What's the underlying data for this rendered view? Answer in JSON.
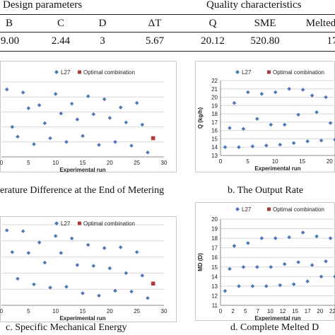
{
  "table": {
    "design_header": "Design parameters",
    "quality_header": "Quality characteristics",
    "columns": [
      "B",
      "C",
      "D",
      "ΔT",
      "Q",
      "SME",
      "Melted"
    ],
    "row": [
      "9.00",
      "2.44",
      "3",
      "5.67",
      "20.12",
      "520.80",
      "17"
    ]
  },
  "captions": {
    "a": "erature Difference at the End of Metering",
    "b": "b.  The Output Rate",
    "c": "c.  Specific Mechanical Energy",
    "d": "d.   Complete Melted D"
  },
  "colors": {
    "l27": "#4a78b8",
    "optimal": "#b03a3a"
  },
  "chart_data": [
    {
      "type": "scatter",
      "id": "a",
      "xlabel": "Experimental run",
      "xlim": [
        0,
        30
      ],
      "ylim": [
        0,
        10
      ],
      "x_ticks": [
        "0",
        "5",
        "10",
        "15",
        "20",
        "25",
        "30"
      ],
      "legend": [
        "L27",
        "Optimal combination"
      ],
      "series": [
        {
          "name": "L27",
          "x": [
            1,
            2,
            3,
            4,
            5,
            6,
            7,
            8,
            9,
            10,
            11,
            12,
            13,
            14,
            15,
            16,
            17,
            18,
            19,
            20,
            21,
            22,
            23,
            24,
            25,
            26,
            27
          ],
          "y": [
            9,
            4,
            2.7,
            8.6,
            6.5,
            1.7,
            6.9,
            4.5,
            2.5,
            8.4,
            5.8,
            2.0,
            7.1,
            5.0,
            2.8,
            8.1,
            5.7,
            1.6,
            7.7,
            5.2,
            2.0,
            6.6,
            4.6,
            1.5,
            7.2,
            4.3,
            0.6
          ]
        },
        {
          "name": "Optimal combination",
          "x": [
            28
          ],
          "y": [
            2.5
          ]
        }
      ]
    },
    {
      "type": "scatter",
      "id": "b",
      "xlabel": "Experimental run",
      "ylabel": "Q (kg/h)",
      "xlim": [
        0,
        25
      ],
      "ylim": [
        13,
        22
      ],
      "x_ticks": [
        "0",
        "5",
        "10",
        "15",
        "20"
      ],
      "y_ticks": [
        "13",
        "14",
        "15",
        "16",
        "17",
        "18",
        "19",
        "20",
        "21",
        "22"
      ],
      "legend": [
        "L27",
        "Optimal combination"
      ],
      "series": [
        {
          "name": "L27",
          "x": [
            1,
            2,
            3,
            4,
            5,
            6,
            7,
            8,
            9,
            10,
            11,
            12,
            13,
            14,
            15,
            16,
            17,
            18,
            19,
            20,
            21,
            22,
            23,
            24,
            25
          ],
          "y": [
            14.0,
            16.3,
            19.3,
            14.0,
            16.2,
            20.6,
            14.1,
            17.4,
            20.4,
            14.2,
            16.7,
            20.6,
            14.3,
            16.7,
            21.0,
            14.5,
            17.9,
            20.9,
            14.7,
            20.2,
            18.2,
            14.8,
            20.0,
            16.9,
            14.9
          ]
        },
        {
          "name": "Optimal combination",
          "x": [],
          "y": []
        }
      ]
    },
    {
      "type": "scatter",
      "id": "c",
      "xlabel": "Experimental run",
      "xlim": [
        0,
        30
      ],
      "ylim": [
        0,
        10
      ],
      "x_ticks": [
        "0",
        "5",
        "10",
        "15",
        "20",
        "25",
        "30"
      ],
      "legend": [
        "L27",
        "Optimal combination"
      ],
      "series": [
        {
          "name": "L27",
          "x": [
            1,
            2,
            3,
            4,
            5,
            6,
            7,
            8,
            9,
            10,
            11,
            12,
            13,
            14,
            15,
            16,
            17,
            18,
            19,
            20,
            21,
            22,
            23,
            24,
            25,
            26,
            27
          ],
          "y": [
            9.3,
            6.6,
            3.3,
            9.2,
            6.5,
            2.6,
            7.8,
            5.3,
            2.2,
            8.6,
            6.5,
            2.3,
            8.3,
            5.0,
            1.5,
            7.5,
            4.9,
            1.2,
            7.1,
            4.6,
            1.8,
            7.2,
            4.0,
            1.7,
            6.6,
            3.7,
            0.9
          ]
        },
        {
          "name": "Optimal combination",
          "x": [
            28
          ],
          "y": [
            2.7
          ]
        }
      ]
    },
    {
      "type": "scatter",
      "id": "d",
      "xlabel": "Experimental run",
      "ylabel": "MD (D)",
      "xlim": [
        0,
        25
      ],
      "ylim": [
        11,
        20
      ],
      "x_ticks": [
        "0",
        "2",
        "5",
        "7",
        "10",
        "12",
        "15",
        "17",
        "20",
        "22"
      ],
      "y_ticks": [
        "11",
        "12",
        "13",
        "14",
        "15",
        "16",
        "17",
        "18",
        "19",
        "20"
      ],
      "legend": [
        "L27",
        "Optimal combination"
      ],
      "series": [
        {
          "name": "L27",
          "x": [
            1,
            2,
            3,
            4,
            5,
            6,
            7,
            8,
            9,
            10,
            11,
            12,
            13,
            14,
            15,
            16,
            17,
            18,
            19,
            20,
            21,
            22,
            23,
            24,
            25
          ],
          "y": [
            12.5,
            14.8,
            17.2,
            13.0,
            15.0,
            17.5,
            13.0,
            15.0,
            18.0,
            13.0,
            15.0,
            18.0,
            13.1,
            15.3,
            18.1,
            13.2,
            15.5,
            18.6,
            13.5,
            15.2,
            18.2,
            14.0,
            15.6,
            18.0,
            14.0
          ]
        },
        {
          "name": "Optimal combination",
          "x": [],
          "y": []
        }
      ]
    }
  ]
}
